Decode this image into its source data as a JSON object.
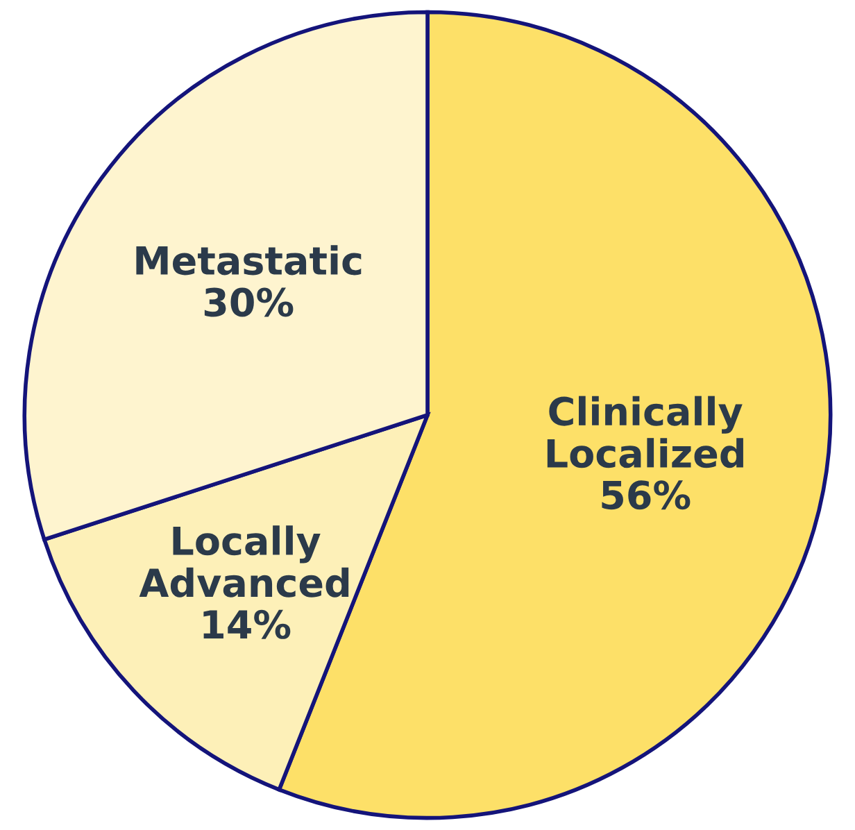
{
  "chart_data": {
    "type": "pie",
    "categories": [
      "Clinically Localized",
      "Locally Advanced",
      "Metastatic"
    ],
    "values": [
      56,
      14,
      30
    ],
    "value_labels": [
      "56%",
      "14%",
      "30%"
    ],
    "colors": [
      "#fde068",
      "#fdf0b8",
      "#fef4cf"
    ],
    "legend": false
  }
}
